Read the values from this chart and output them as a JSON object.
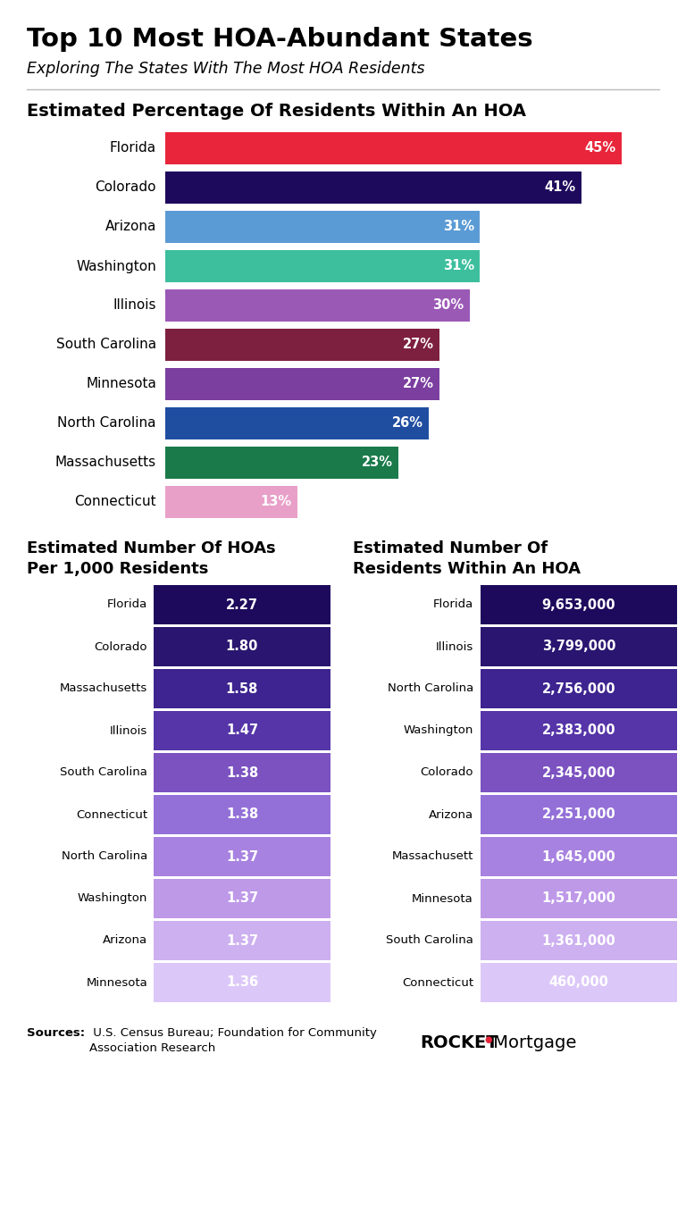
{
  "title": "Top 10 Most HOA-Abundant States",
  "subtitle": "Exploring The States With The Most HOA Residents",
  "section1_title": "Estimated Percentage Of Residents Within An HOA",
  "bar_states": [
    "Florida",
    "Colorado",
    "Arizona",
    "Washington",
    "Illinois",
    "South Carolina",
    "Minnesota",
    "North Carolina",
    "Massachusetts",
    "Connecticut"
  ],
  "bar_values": [
    45,
    41,
    31,
    31,
    30,
    27,
    27,
    26,
    23,
    13
  ],
  "bar_colors": [
    "#e8253a",
    "#1e0a5c",
    "#5b9bd5",
    "#3dbf9e",
    "#9b59b6",
    "#7d2040",
    "#7b3fa0",
    "#1f4ea1",
    "#1a7a4a",
    "#e8a0c8"
  ],
  "section2_title": "Estimated Number Of HOAs\nPer 1,000 Residents",
  "hoa_per1k_states": [
    "Florida",
    "Colorado",
    "Massachusetts",
    "Illinois",
    "South Carolina",
    "Connecticut",
    "North Carolina",
    "Washington",
    "Arizona",
    "Minnesota"
  ],
  "hoa_per1k_values": [
    "2.27",
    "1.80",
    "1.58",
    "1.47",
    "1.38",
    "1.38",
    "1.37",
    "1.37",
    "1.37",
    "1.36"
  ],
  "hoa_per1k_colors": [
    "#1e0a5c",
    "#2a1570",
    "#3d2490",
    "#5535a8",
    "#7b52c0",
    "#9370d8",
    "#a882e0",
    "#be99e8",
    "#cdb0f0",
    "#dcc8f8"
  ],
  "section3_title": "Estimated Number Of\nResidents Within An HOA",
  "residents_states": [
    "Florida",
    "Illinois",
    "North Carolina",
    "Washington",
    "Colorado",
    "Arizona",
    "Massachusett",
    "Minnesota",
    "South Carolina",
    "Connecticut"
  ],
  "residents_values": [
    "9,653,000",
    "3,799,000",
    "2,756,000",
    "2,383,000",
    "2,345,000",
    "2,251,000",
    "1,645,000",
    "1,517,000",
    "1,361,000",
    "460,000"
  ],
  "residents_colors": [
    "#1e0a5c",
    "#2a1570",
    "#3d2490",
    "#5535a8",
    "#7b52c0",
    "#9370d8",
    "#a882e0",
    "#be99e8",
    "#cdb0f0",
    "#dcc8f8"
  ],
  "background_color": "#ffffff"
}
